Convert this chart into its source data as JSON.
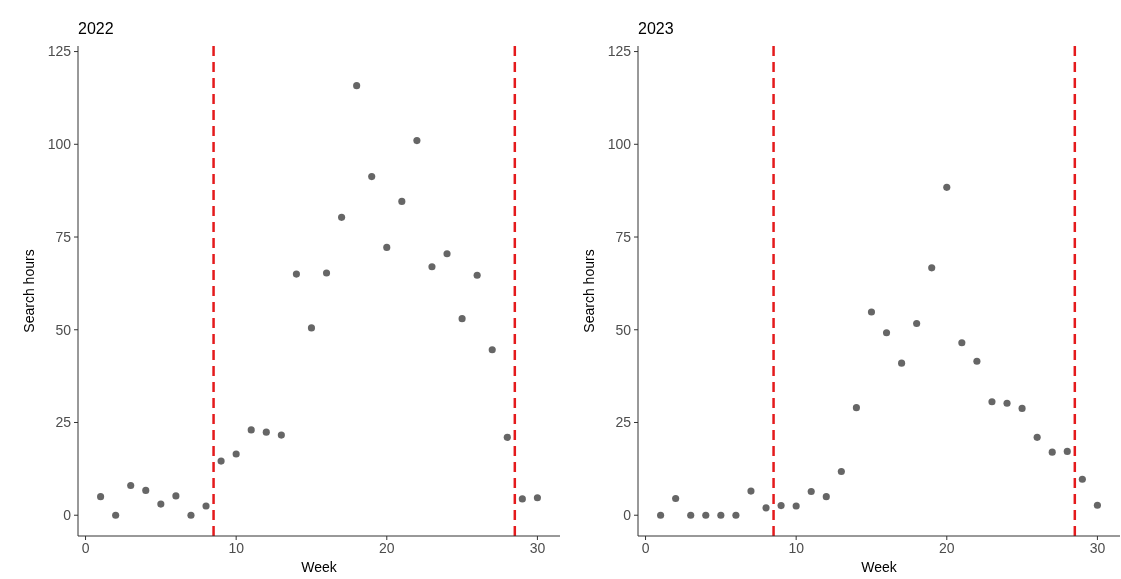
{
  "chart_data": [
    {
      "type": "scatter",
      "title": "2022",
      "xlabel": "Week",
      "ylabel": "Search hours",
      "xlim": [
        -0.5,
        31.5
      ],
      "xticks": [
        0,
        10,
        20,
        30
      ],
      "ylim": [
        -5.6,
        126.5
      ],
      "yticks": [
        0,
        25,
        50,
        75,
        100,
        125
      ],
      "grid": false,
      "marker": "circle",
      "series": [
        {
          "color": "#666666",
          "x": [
            1,
            2,
            3,
            4,
            5,
            6,
            7,
            8,
            9,
            10,
            11,
            12,
            13,
            14,
            15,
            16,
            17,
            18,
            19,
            20,
            21,
            22,
            23,
            24,
            25,
            26,
            27,
            28,
            29,
            30
          ],
          "values": [
            5,
            0,
            8,
            6.7,
            3,
            5.2,
            0,
            2.5,
            14.6,
            16.5,
            23,
            22.4,
            21.6,
            65,
            50.5,
            65.3,
            80.3,
            115.8,
            91.3,
            72.2,
            84.6,
            101,
            67,
            70.5,
            53,
            64.7,
            44.6,
            21,
            4.4,
            4.7
          ]
        }
      ],
      "ref_lines": [
        {
          "axis": "x",
          "value": 8.5,
          "color": "#e41a1c",
          "line_style": "dashed"
        },
        {
          "axis": "x",
          "value": 28.5,
          "color": "#e41a1c",
          "line_style": "dashed"
        }
      ]
    },
    {
      "type": "scatter",
      "title": "2023",
      "xlabel": "Week",
      "ylabel": "Search hours",
      "xlim": [
        -0.5,
        31.5
      ],
      "xticks": [
        0,
        10,
        20,
        30
      ],
      "ylim": [
        -5.6,
        126.5
      ],
      "yticks": [
        0,
        25,
        50,
        75,
        100,
        125
      ],
      "grid": false,
      "marker": "circle",
      "series": [
        {
          "color": "#666666",
          "x": [
            1,
            2,
            3,
            4,
            5,
            6,
            7,
            8,
            9,
            10,
            11,
            12,
            13,
            14,
            15,
            16,
            17,
            18,
            19,
            20,
            21,
            22,
            23,
            24,
            25,
            26,
            27,
            28,
            29,
            30
          ],
          "values": [
            0,
            4.5,
            0,
            0,
            0,
            0,
            6.5,
            2,
            2.6,
            2.5,
            6.4,
            5,
            11.8,
            29,
            54.8,
            49.2,
            41,
            51.7,
            66.7,
            88.4,
            46.5,
            41.5,
            30.6,
            30.2,
            28.8,
            21,
            17,
            17.2,
            9.7,
            2.7
          ]
        }
      ],
      "ref_lines": [
        {
          "axis": "x",
          "value": 8.5,
          "color": "#e41a1c",
          "line_style": "dashed"
        },
        {
          "axis": "x",
          "value": 28.5,
          "color": "#e41a1c",
          "line_style": "dashed"
        }
      ]
    }
  ]
}
